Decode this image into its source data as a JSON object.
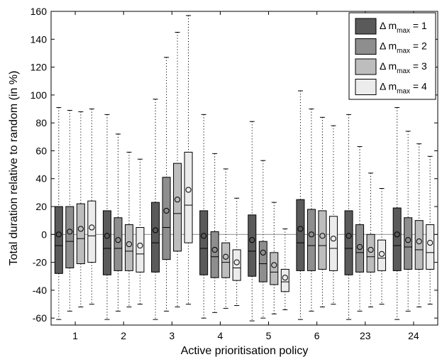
{
  "chart_data": {
    "type": "boxplot",
    "xlabel": "Active prioritisation policy",
    "ylabel": "Total duration relative to random (in %)",
    "ylim": [
      -65,
      160
    ],
    "yticks": [
      -60,
      -40,
      -20,
      0,
      20,
      40,
      60,
      80,
      100,
      120,
      140,
      160
    ],
    "reference_line": 0,
    "grid": false,
    "legend_position": "top-right",
    "categories": [
      "1",
      "2",
      "3",
      "4",
      "5",
      "6",
      "23",
      "24"
    ],
    "series": [
      {
        "name": "Δ m_max = 1",
        "legend_base": "Δ m",
        "legend_sub": "max",
        "legend_tail": " = 1",
        "color": "#5a5a5a",
        "boxes": [
          {
            "whislo": -61,
            "q1": -28,
            "med": -8,
            "q3": 20,
            "whishi": 91,
            "mean": 0
          },
          {
            "whislo": -61,
            "q1": -29,
            "med": -10,
            "q3": 17,
            "whishi": 86,
            "mean": -1
          },
          {
            "whislo": -61,
            "q1": -27,
            "med": -6,
            "q3": 23,
            "whishi": 97,
            "mean": 3
          },
          {
            "whislo": -60,
            "q1": -29,
            "med": -10,
            "q3": 17,
            "whishi": 86,
            "mean": -1
          },
          {
            "whislo": -62,
            "q1": -30,
            "med": -12,
            "q3": 14,
            "whishi": 81,
            "mean": -4
          },
          {
            "whislo": -61,
            "q1": -26,
            "med": -6,
            "q3": 25,
            "whishi": 103,
            "mean": 4
          },
          {
            "whislo": -61,
            "q1": -29,
            "med": -10,
            "q3": 17,
            "whishi": 86,
            "mean": -1
          },
          {
            "whislo": -61,
            "q1": -26,
            "med": -8,
            "q3": 19,
            "whishi": 91,
            "mean": 0
          }
        ]
      },
      {
        "name": "Δ m_max = 2",
        "legend_base": "Δ m",
        "legend_sub": "max",
        "legend_tail": " = 2",
        "color": "#8e8e8e",
        "boxes": [
          {
            "whislo": -55,
            "q1": -24,
            "med": -5,
            "q3": 20,
            "whishi": 89,
            "mean": 2
          },
          {
            "whislo": -55,
            "q1": -26,
            "med": -10,
            "q3": 12,
            "whishi": 72,
            "mean": -4
          },
          {
            "whislo": -55,
            "q1": -18,
            "med": 5,
            "q3": 41,
            "whishi": 127,
            "mean": 17
          },
          {
            "whislo": -56,
            "q1": -31,
            "med": -16,
            "q3": 2,
            "whishi": 58,
            "mean": -11
          },
          {
            "whislo": -60,
            "q1": -34,
            "med": -21,
            "q3": -5,
            "whishi": 53,
            "mean": -13
          },
          {
            "whislo": -55,
            "q1": -26,
            "med": -8,
            "q3": 18,
            "whishi": 90,
            "mean": 0
          },
          {
            "whislo": -55,
            "q1": -27,
            "med": -13,
            "q3": 7,
            "whishi": 63,
            "mean": -9
          },
          {
            "whislo": -55,
            "q1": -25,
            "med": -9,
            "q3": 12,
            "whishi": 74,
            "mean": -4
          }
        ]
      },
      {
        "name": "Δ m_max = 3",
        "legend_base": "Δ m",
        "legend_sub": "max",
        "legend_tail": " = 3",
        "color": "#bdbdbd",
        "boxes": [
          {
            "whislo": -52,
            "q1": -21,
            "med": -3,
            "q3": 22,
            "whishi": 88,
            "mean": 4
          },
          {
            "whislo": -52,
            "q1": -26,
            "med": -12,
            "q3": 7,
            "whishi": 59,
            "mean": -7
          },
          {
            "whislo": -52,
            "q1": -12,
            "med": 15,
            "q3": 51,
            "whishi": 145,
            "mean": 25
          },
          {
            "whislo": -53,
            "q1": -31,
            "med": -20,
            "q3": -6,
            "whishi": 47,
            "mean": -16
          },
          {
            "whislo": -57,
            "q1": -36,
            "med": -27,
            "q3": -13,
            "whishi": 23,
            "mean": -22
          },
          {
            "whislo": -52,
            "q1": -25,
            "med": -8,
            "q3": 17,
            "whishi": 84,
            "mean": -1
          },
          {
            "whislo": -52,
            "q1": -27,
            "med": -16,
            "q3": 0,
            "whishi": 44,
            "mean": -11
          },
          {
            "whislo": -52,
            "q1": -25,
            "med": -11,
            "q3": 10,
            "whishi": 65,
            "mean": -5
          }
        ]
      },
      {
        "name": "Δ m_max = 4",
        "legend_base": "Δ m",
        "legend_sub": "max",
        "legend_tail": " = 4",
        "color": "#ececec",
        "boxes": [
          {
            "whislo": -50,
            "q1": -20,
            "med": -1,
            "q3": 24,
            "whishi": 90,
            "mean": 5
          },
          {
            "whislo": -50,
            "q1": -27,
            "med": -14,
            "q3": 5,
            "whishi": 54,
            "mean": -8
          },
          {
            "whislo": -50,
            "q1": -6,
            "med": 21,
            "q3": 59,
            "whishi": 157,
            "mean": 32
          },
          {
            "whislo": -51,
            "q1": -33,
            "med": -24,
            "q3": -11,
            "whishi": 26,
            "mean": -20
          },
          {
            "whislo": -54,
            "q1": -41,
            "med": -34,
            "q3": -25,
            "whishi": 4,
            "mean": -31
          },
          {
            "whislo": -50,
            "q1": -26,
            "med": -10,
            "q3": 13,
            "whishi": 78,
            "mean": -3
          },
          {
            "whislo": -50,
            "q1": -26,
            "med": -17,
            "q3": -4,
            "whishi": 33,
            "mean": -14
          },
          {
            "whislo": -50,
            "q1": -25,
            "med": -13,
            "q3": 7,
            "whishi": 56,
            "mean": -6
          }
        ]
      }
    ]
  }
}
